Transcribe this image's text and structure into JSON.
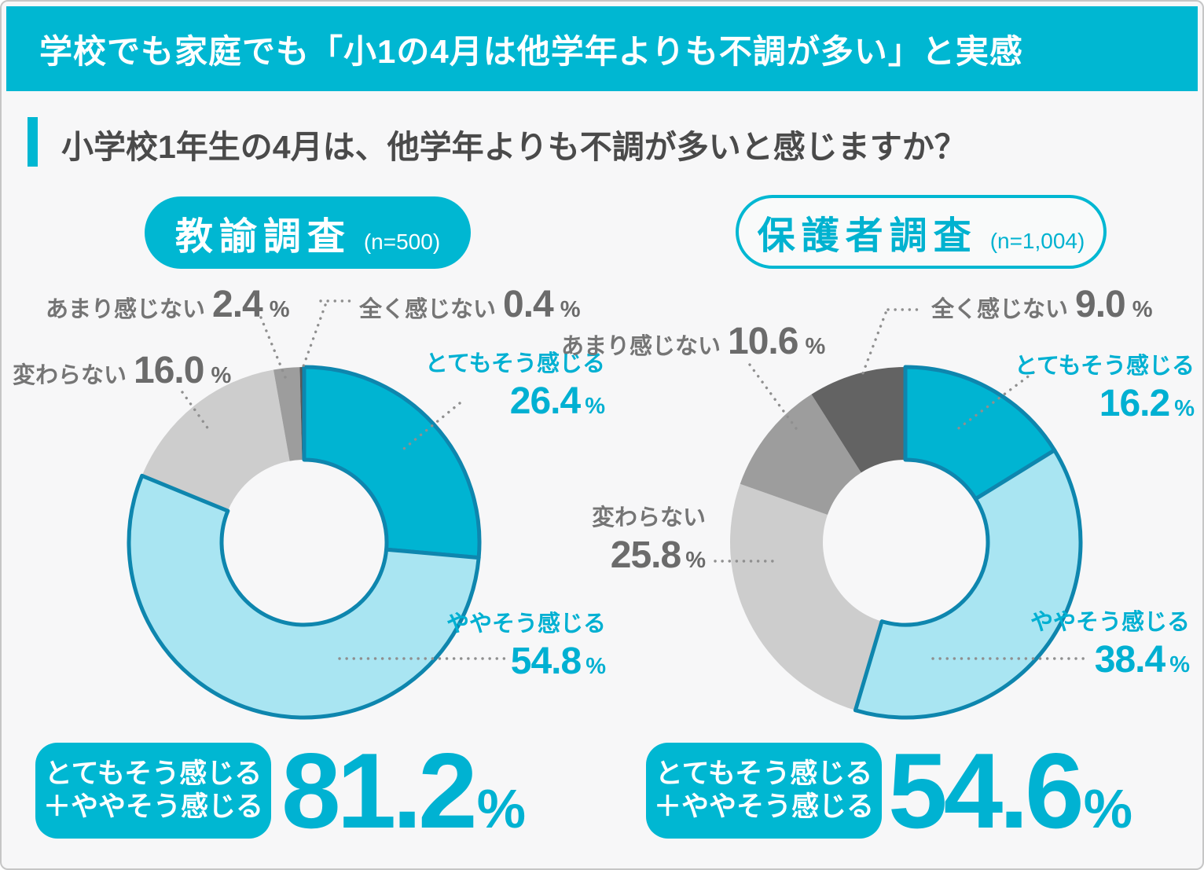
{
  "header": {
    "title": "学校でも家庭でも「小1の4月は他学年よりも不調が多い」と実感"
  },
  "question": {
    "text": "小学校1年生の4月は、他学年よりも不調が多いと感じますか？"
  },
  "accent_colors": {
    "primary_cyan": "#00b7d2",
    "donut_strong_cyan": "#00b4d2",
    "donut_light_cyan": "#a9e5f2",
    "donut_cyan_stroke": "#0e86ae",
    "gray_light": "#cdcdcd",
    "gray_mid": "#9d9d9d",
    "gray_dark": "#5e5e5e",
    "label_gray": "#757575",
    "label_cyan": "#00b0d2",
    "leader_dots": "#8f8f8f",
    "background": "#f7f7f8"
  },
  "chart_data": [
    {
      "type": "pie",
      "title": "教諭調査",
      "n_label": "(n=500)",
      "unit": "%",
      "labels": [
        "とてもそう感じる",
        "ややそう感じる",
        "変わらない",
        "あまり感じない",
        "全く感じない"
      ],
      "values": [
        26.4,
        54.8,
        16.0,
        2.4,
        0.4
      ],
      "value_displays": [
        "26.4",
        "54.8",
        "16.0",
        "2.4",
        "0.4"
      ],
      "colors": [
        "#00b4d2",
        "#a9e5f2",
        "#cdcdcd",
        "#9d9d9d",
        "#575757"
      ],
      "strokes": [
        "#0e86ae",
        "#0e86ae",
        "",
        "",
        ""
      ],
      "label_colors": [
        "#00b0d2",
        "#00b0d2",
        "#757575",
        "#757575",
        "#757575"
      ],
      "summary": {
        "label_line1": "とてもそう感じる",
        "label_line2": "＋ややそう感じる",
        "value": "81.2",
        "unit": "%"
      }
    },
    {
      "type": "pie",
      "title": "保護者調査",
      "n_label": "(n=1,004)",
      "unit": "%",
      "labels": [
        "とてもそう感じる",
        "ややそう感じる",
        "変わらない",
        "あまり感じない",
        "全く感じない"
      ],
      "values": [
        16.2,
        38.4,
        25.8,
        10.6,
        9.0
      ],
      "value_displays": [
        "16.2",
        "38.4",
        "25.8",
        "10.6",
        "9.0"
      ],
      "colors": [
        "#00b4d2",
        "#a9e5f2",
        "#cdcdcd",
        "#9d9d9d",
        "#636363"
      ],
      "strokes": [
        "#0e86ae",
        "#0e86ae",
        "",
        "",
        ""
      ],
      "label_colors": [
        "#00b0d2",
        "#00b0d2",
        "#757575",
        "#757575",
        "#757575"
      ],
      "summary": {
        "label_line1": "とてもそう感じる",
        "label_line2": "＋ややそう感じる",
        "value": "54.6",
        "unit": "%"
      }
    }
  ]
}
